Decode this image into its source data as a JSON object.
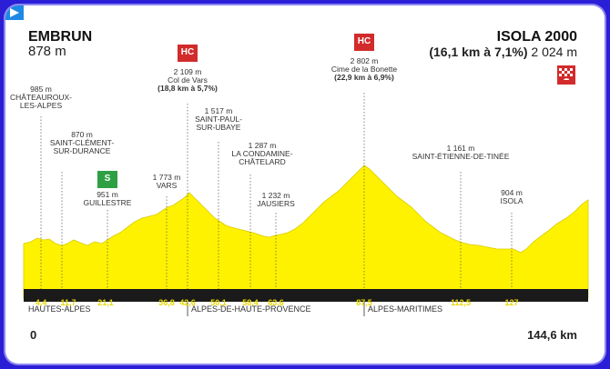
{
  "start": {
    "name": "EMBRUN",
    "altitude": "878 m"
  },
  "finish": {
    "name": "ISOLA 2000",
    "climb": "(16,1 km à 7,1%)",
    "altitude": "2 024 m",
    "category_badge": "1"
  },
  "distance": {
    "start": "0",
    "end": "144,6 km"
  },
  "regions": [
    "HAUTES-ALPES",
    "ALPES-DE-HAUTE-PROVENCE",
    "ALPES-MARITIMES"
  ],
  "points": [
    {
      "id": "chateauroux",
      "alt": "985 m",
      "name1": "CHÂTEAUROUX-",
      "name2": "LES-ALPES",
      "km": "4,4"
    },
    {
      "id": "saint-clement",
      "alt": "870 m",
      "name1": "SAINT-CLÉMENT-",
      "name2": "SUR-DURANCE",
      "km": "11,7"
    },
    {
      "id": "guillestre",
      "alt": "951 m",
      "name1": "GUILLESTRE",
      "km": "21,1",
      "badge": "S"
    },
    {
      "id": "vars",
      "alt": "1 773 m",
      "name1": "VARS",
      "km": "36,8"
    },
    {
      "id": "col-de-vars",
      "alt": "2 109 m",
      "name1": "Col de Vars",
      "detail": "(18,8 km à 5,7%)",
      "km": "42,6",
      "badge": "HC"
    },
    {
      "id": "saint-paul",
      "alt": "1 517 m",
      "name1": "SAINT-PAUL-",
      "name2": "SUR-UBAYE",
      "km": "50,1"
    },
    {
      "id": "condamine",
      "alt": "1 287 m",
      "name1": "LA CONDAMINE-",
      "name2": "CHÂTELARD",
      "km": "58,4"
    },
    {
      "id": "jausiers",
      "alt": "1 232 m",
      "name1": "JAUSIERS",
      "km": "63,6"
    },
    {
      "id": "bonette",
      "alt": "2 802 m",
      "name1": "Cime de la Bonette",
      "detail": "(22,9 km à 6,9%)",
      "km": "87,5",
      "badge": "HC"
    },
    {
      "id": "saint-etienne",
      "alt": "1 161 m",
      "name1": "SAINT-ÉTIENNE-DE-TINÉE",
      "km": "112,5"
    },
    {
      "id": "isola",
      "alt": "904 m",
      "name1": "ISOLA",
      "km": "127"
    }
  ],
  "colors": {
    "frame": "#2a1fd6",
    "profile": "#fff200",
    "baseline": "#1a1a1a",
    "hc": "#d22b2b",
    "sprint": "#2ea043"
  }
}
